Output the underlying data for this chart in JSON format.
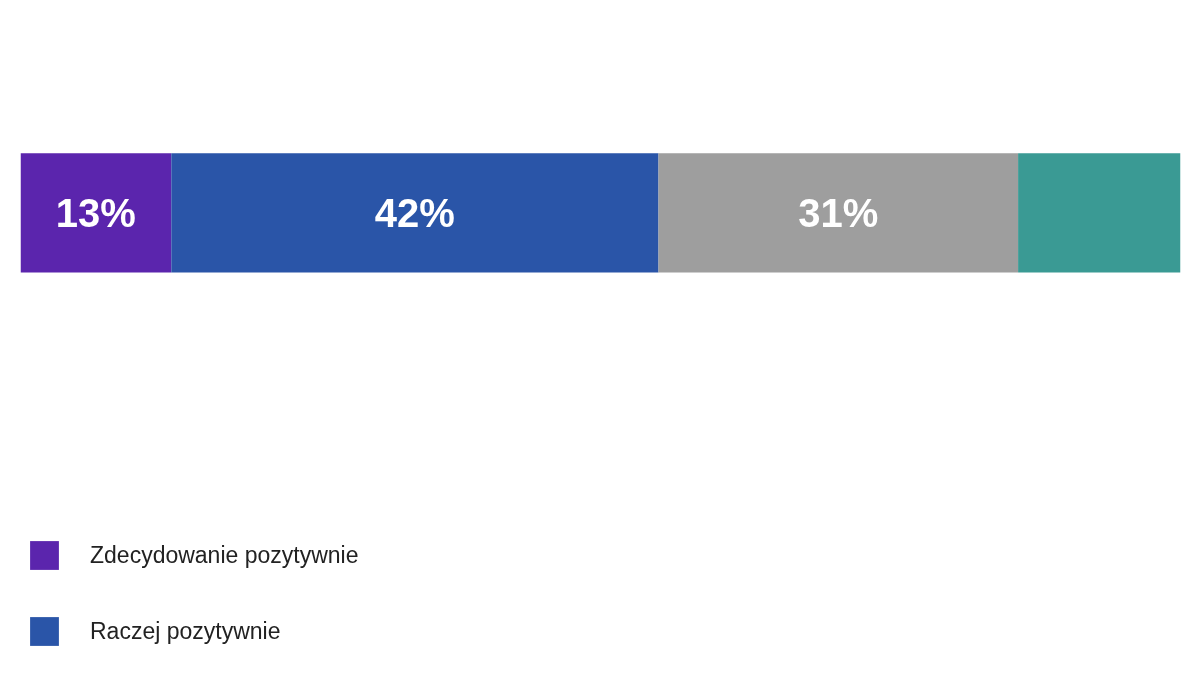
{
  "chart_data": {
    "type": "bar",
    "orientation": "horizontal",
    "stacked": true,
    "categories": [
      null
    ],
    "series": [
      {
        "name": "Zdecydowanie pozytywnie",
        "color": "#5b25ad",
        "values": [
          13
        ],
        "value_labels": [
          "13%"
        ]
      },
      {
        "name": "Raczej pozytywnie",
        "color": "#2a55a8",
        "values": [
          42
        ],
        "value_labels": [
          "42%"
        ]
      },
      {
        "color": "#9e9e9e",
        "values": [
          31
        ],
        "value_labels": [
          "31%"
        ]
      },
      {
        "color": "#3a9a94",
        "values": [
          14
        ]
      }
    ],
    "tick_labels": false,
    "legend": "bottom left"
  }
}
